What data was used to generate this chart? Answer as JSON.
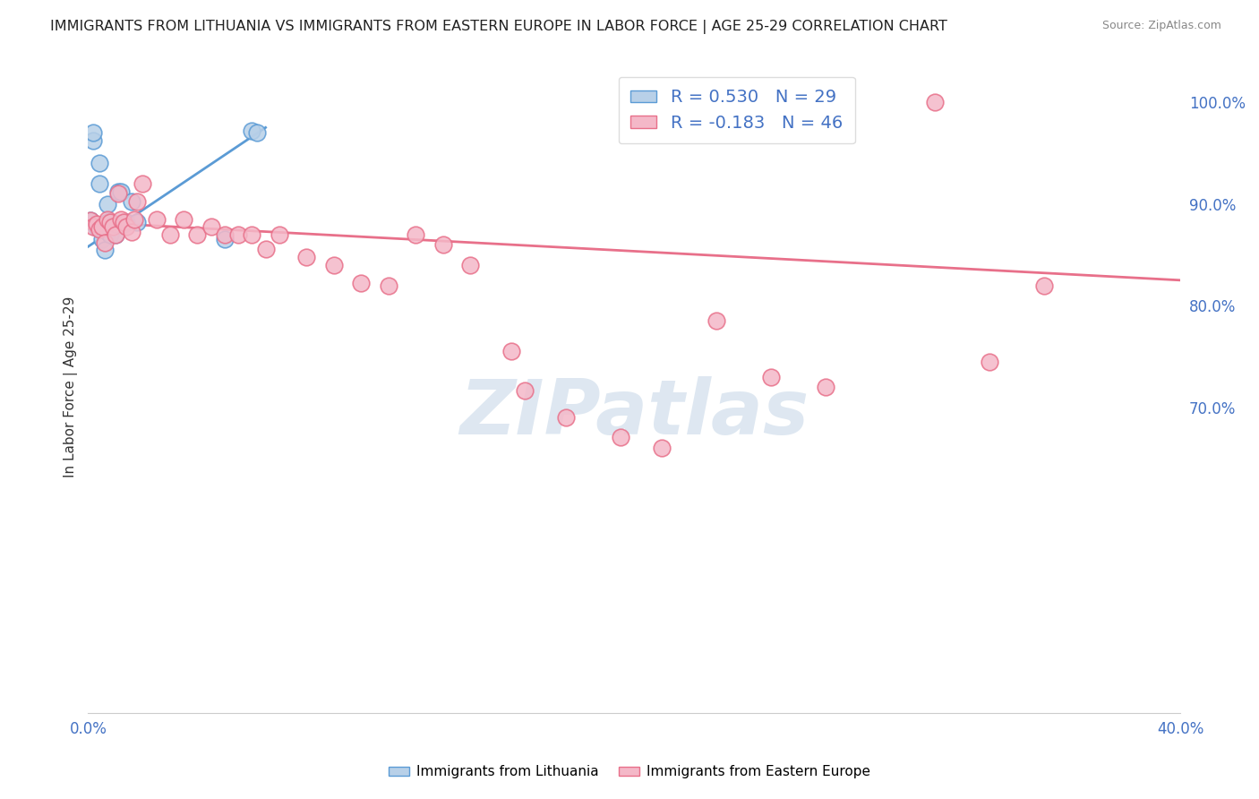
{
  "title": "IMMIGRANTS FROM LITHUANIA VS IMMIGRANTS FROM EASTERN EUROPE IN LABOR FORCE | AGE 25-29 CORRELATION CHART",
  "source": "Source: ZipAtlas.com",
  "ylabel": "In Labor Force | Age 25-29",
  "xlim": [
    0.0,
    0.4
  ],
  "ylim": [
    0.4,
    1.04
  ],
  "right_yticks": [
    1.0,
    0.9,
    0.8,
    0.7
  ],
  "right_yticklabels": [
    "100.0%",
    "90.0%",
    "80.0%",
    "70.0%"
  ],
  "xticks": [
    0.0,
    0.05,
    0.1,
    0.15,
    0.2,
    0.25,
    0.3,
    0.35,
    0.4
  ],
  "xticklabels": [
    "0.0%",
    "",
    "",
    "",
    "",
    "",
    "",
    "",
    "40.0%"
  ],
  "series": [
    {
      "name": "Immigrants from Lithuania",
      "color": "#b8d0e8",
      "border_color": "#5b9bd5",
      "R": 0.53,
      "N": 29,
      "x": [
        0.001,
        0.001,
        0.002,
        0.002,
        0.003,
        0.003,
        0.004,
        0.004,
        0.005,
        0.005,
        0.006,
        0.006,
        0.007,
        0.007,
        0.007,
        0.008,
        0.008,
        0.009,
        0.01,
        0.01,
        0.011,
        0.012,
        0.013,
        0.014,
        0.016,
        0.018,
        0.05,
        0.06,
        0.062
      ],
      "y": [
        0.883,
        0.884,
        0.962,
        0.97,
        0.877,
        0.878,
        0.92,
        0.94,
        0.865,
        0.875,
        0.855,
        0.88,
        0.872,
        0.882,
        0.9,
        0.87,
        0.882,
        0.88,
        0.87,
        0.88,
        0.912,
        0.912,
        0.88,
        0.882,
        0.902,
        0.882,
        0.865,
        0.972,
        0.97
      ],
      "trend_x": [
        0.0,
        0.065
      ],
      "trend_y": [
        0.858,
        0.975
      ]
    },
    {
      "name": "Immigrants from Eastern Europe",
      "color": "#f4b8c8",
      "border_color": "#e8708a",
      "R": -0.183,
      "N": 46,
      "x": [
        0.001,
        0.002,
        0.003,
        0.004,
        0.005,
        0.006,
        0.007,
        0.008,
        0.009,
        0.01,
        0.011,
        0.012,
        0.013,
        0.014,
        0.016,
        0.017,
        0.018,
        0.02,
        0.025,
        0.03,
        0.035,
        0.04,
        0.045,
        0.05,
        0.055,
        0.06,
        0.065,
        0.07,
        0.08,
        0.09,
        0.1,
        0.11,
        0.12,
        0.13,
        0.14,
        0.155,
        0.16,
        0.175,
        0.195,
        0.21,
        0.23,
        0.25,
        0.27,
        0.31,
        0.33,
        0.35
      ],
      "y": [
        0.884,
        0.878,
        0.88,
        0.875,
        0.878,
        0.862,
        0.885,
        0.882,
        0.878,
        0.87,
        0.91,
        0.885,
        0.882,
        0.878,
        0.872,
        0.885,
        0.902,
        0.92,
        0.885,
        0.87,
        0.885,
        0.87,
        0.878,
        0.87,
        0.87,
        0.87,
        0.856,
        0.87,
        0.848,
        0.84,
        0.822,
        0.82,
        0.87,
        0.86,
        0.84,
        0.755,
        0.717,
        0.69,
        0.671,
        0.66,
        0.785,
        0.73,
        0.72,
        1.0,
        0.745,
        0.82
      ],
      "trend_x": [
        0.0,
        0.4
      ],
      "trend_y": [
        0.882,
        0.825
      ]
    }
  ],
  "watermark": "ZIPatlas",
  "watermark_color": "#c8d8e8",
  "background_color": "#ffffff",
  "grid_color": "#e0e0e0",
  "grid_linestyle": "--"
}
